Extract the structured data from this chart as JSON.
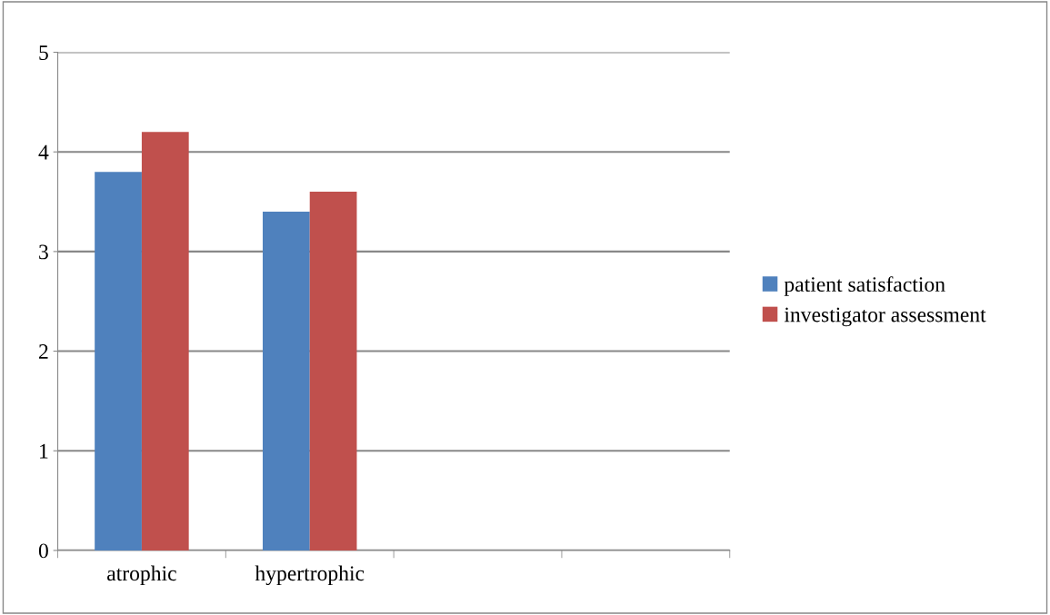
{
  "chart_data": {
    "type": "bar",
    "categories": [
      "atrophic",
      "hypertrophic",
      null,
      null
    ],
    "series": [
      {
        "name": "patient satisfaction",
        "color": "#4f81bd",
        "values": [
          3.8,
          3.4,
          null,
          null
        ]
      },
      {
        "name": "investigator assessment",
        "color": "#c0504d",
        "values": [
          4.2,
          3.6,
          null,
          null
        ]
      }
    ],
    "ylim": [
      0,
      5
    ],
    "yticks": [
      0,
      1,
      2,
      3,
      4,
      5
    ],
    "grid": "y",
    "legend": "right"
  }
}
